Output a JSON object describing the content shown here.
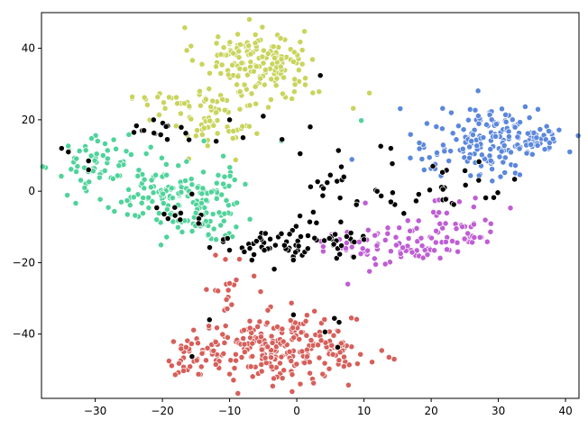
{
  "chart_data": {
    "type": "scatter",
    "title": "",
    "xlabel": "",
    "ylabel": "",
    "xlim": [
      -38,
      42
    ],
    "ylim": [
      -58,
      50
    ],
    "grid": false,
    "legend": "none",
    "xticks": [
      -30,
      -20,
      -10,
      0,
      10,
      20,
      30,
      40
    ],
    "yticks": [
      -40,
      -20,
      0,
      20,
      40
    ],
    "xtick_labels": [
      "−30",
      "−20",
      "−10",
      "0",
      "10",
      "20",
      "30",
      "40"
    ],
    "ytick_labels": [
      "−40",
      "−20",
      "0",
      "20",
      "40"
    ],
    "series": [
      {
        "color": "#c9d45c",
        "clusters": [
          {
            "cx": -7,
            "cy": 38,
            "sx": 4,
            "sy": 4,
            "n": 110
          },
          {
            "cx": -12,
            "cy": 22,
            "sx": 3.5,
            "sy": 5,
            "n": 80
          },
          {
            "cx": -20,
            "cy": 26,
            "sx": 3,
            "sy": 1.5,
            "n": 12
          },
          {
            "cx": -2,
            "cy": 32,
            "sx": 3,
            "sy": 4,
            "n": 40
          }
        ],
        "points": [
          [
            10.8,
            27.5
          ],
          [
            8.4,
            23.2
          ],
          [
            -24.5,
            26.4
          ],
          [
            -2.1,
            27.3
          ]
        ]
      },
      {
        "color": "#4fd39a",
        "clusters": [
          {
            "cx": -29,
            "cy": 8,
            "sx": 3.5,
            "sy": 4,
            "n": 60
          },
          {
            "cx": -20,
            "cy": 0,
            "sx": 5,
            "sy": 4,
            "n": 90
          },
          {
            "cx": -14,
            "cy": -8,
            "sx": 4,
            "sy": 4,
            "n": 60
          },
          {
            "cx": -11,
            "cy": 3,
            "sx": 2,
            "sy": 5,
            "n": 25
          }
        ],
        "points": [
          [
            9.6,
            19.8
          ],
          [
            -2.3,
            14.1
          ],
          [
            -32.8,
            9.1
          ]
        ]
      },
      {
        "color": "#5b87dc",
        "clusters": [
          {
            "cx": 30,
            "cy": 16,
            "sx": 4.5,
            "sy": 4,
            "n": 130
          },
          {
            "cx": 24,
            "cy": 9,
            "sx": 4,
            "sy": 2.5,
            "n": 40
          },
          {
            "cx": 36,
            "cy": 14,
            "sx": 2,
            "sy": 2.5,
            "n": 25
          }
        ],
        "points": [
          [
            15.4,
            23.1
          ],
          [
            33.2,
            4.6
          ],
          [
            8.2,
            8.9
          ]
        ]
      },
      {
        "color": "#bf5ed4",
        "clusters": [
          {
            "cx": 17,
            "cy": -15,
            "sx": 4,
            "sy": 3,
            "n": 60
          },
          {
            "cx": 24,
            "cy": -9,
            "sx": 3,
            "sy": 4,
            "n": 40
          },
          {
            "cx": 8,
            "cy": -15,
            "sx": 3,
            "sy": 2,
            "n": 20
          }
        ],
        "points": [
          [
            10.2,
            -3.3
          ],
          [
            31.8,
            -4.7
          ],
          [
            7.6,
            -26.0
          ]
        ]
      },
      {
        "color": "#d65f5a",
        "clusters": [
          {
            "cx": -3,
            "cy": -44,
            "sx": 6,
            "sy": 4.5,
            "n": 210
          },
          {
            "cx": -15,
            "cy": -46,
            "sx": 2.8,
            "sy": 3.5,
            "n": 40
          },
          {
            "cx": 6,
            "cy": -46,
            "sx": 2.5,
            "sy": 3.5,
            "n": 30
          },
          {
            "cx": -9,
            "cy": -28,
            "sx": 2,
            "sy": 4,
            "n": 20
          }
        ],
        "points": [
          [
            -18.1,
            -51.4
          ],
          [
            -12.1,
            -17.9
          ],
          [
            5.2,
            -43.2
          ]
        ]
      },
      {
        "color": "#000000",
        "clusters": [
          {
            "cx": -3,
            "cy": -15,
            "sx": 4.5,
            "sy": 3,
            "n": 55
          },
          {
            "cx": 6,
            "cy": -12,
            "sx": 2.5,
            "sy": 3,
            "n": 20
          },
          {
            "cx": -20,
            "cy": 17,
            "sx": 3.5,
            "sy": 2,
            "n": 15
          },
          {
            "cx": 21,
            "cy": 1,
            "sx": 6,
            "sy": 3,
            "n": 30
          },
          {
            "cx": -15,
            "cy": -6,
            "sx": 3,
            "sy": 2,
            "n": 12
          },
          {
            "cx": 4,
            "cy": 1,
            "sx": 2,
            "sy": 4,
            "n": 10
          }
        ],
        "points": [
          [
            -35,
            12
          ],
          [
            -34,
            11
          ],
          [
            -31,
            8.5
          ],
          [
            -10,
            20
          ],
          [
            -5,
            21
          ],
          [
            3.5,
            32.4
          ],
          [
            12.5,
            12.6
          ],
          [
            14,
            12
          ],
          [
            -2.2,
            14.5
          ],
          [
            6.2,
            11.4
          ],
          [
            -31,
            6
          ],
          [
            5.6,
            -35.6
          ],
          [
            6.3,
            -36.7
          ],
          [
            4.2,
            -39.4
          ],
          [
            6.1,
            -43.7
          ],
          [
            -15.6,
            -46.3
          ],
          [
            -0.5,
            -34.6
          ],
          [
            -12,
            14
          ],
          [
            -8,
            15
          ],
          [
            2,
            18
          ],
          [
            7,
            4
          ],
          [
            5,
            4.5
          ],
          [
            -6,
            -14
          ],
          [
            -7,
            -16
          ],
          [
            14,
            -3
          ],
          [
            -13,
            -36
          ],
          [
            0.5,
            10.5
          ]
        ]
      }
    ]
  }
}
